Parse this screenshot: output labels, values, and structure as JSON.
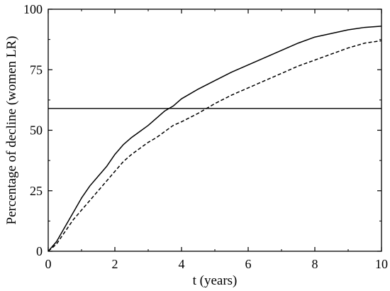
{
  "chart_data": {
    "type": "line",
    "xlabel": "t (years)",
    "ylabel": "Percentage of decline (women LR)",
    "xlim": [
      0,
      10
    ],
    "ylim": [
      0,
      100
    ],
    "x_ticks": [
      0,
      2,
      4,
      6,
      8,
      10
    ],
    "y_ticks": [
      0,
      25,
      50,
      75,
      100
    ],
    "grid": false,
    "legend": "none",
    "reference_line": {
      "y": 59,
      "style": "solid"
    },
    "series": [
      {
        "style": "solid",
        "color": "#000000",
        "x": [
          0,
          0.25,
          0.5,
          0.75,
          1,
          1.25,
          1.5,
          1.75,
          2,
          2.25,
          2.5,
          2.75,
          3,
          3.25,
          3.5,
          3.75,
          4,
          4.5,
          5,
          5.5,
          6,
          6.5,
          7,
          7.5,
          8,
          8.5,
          9,
          9.5,
          10
        ],
        "y": [
          0,
          4,
          10,
          16,
          22,
          27,
          31,
          35,
          40,
          44,
          47,
          49.5,
          52,
          55,
          58,
          60,
          63,
          67,
          70.5,
          74,
          77,
          80,
          83,
          86,
          88.5,
          90,
          91.5,
          92.5,
          93
        ]
      },
      {
        "style": "dashed",
        "color": "#000000",
        "x": [
          0,
          0.25,
          0.5,
          0.75,
          1,
          1.25,
          1.5,
          1.75,
          2,
          2.25,
          2.5,
          2.75,
          3,
          3.25,
          3.5,
          3.75,
          4,
          4.5,
          5,
          5.5,
          6,
          6.5,
          7,
          7.5,
          8,
          8.5,
          9,
          9.5,
          10
        ],
        "y": [
          0,
          3,
          8,
          13,
          17,
          21,
          25,
          29,
          33,
          37,
          40,
          42.5,
          45,
          47,
          49.5,
          52,
          53.5,
          57,
          61,
          64.5,
          67.5,
          70.5,
          73.5,
          76.5,
          79,
          81.5,
          84,
          86,
          87
        ]
      }
    ]
  }
}
